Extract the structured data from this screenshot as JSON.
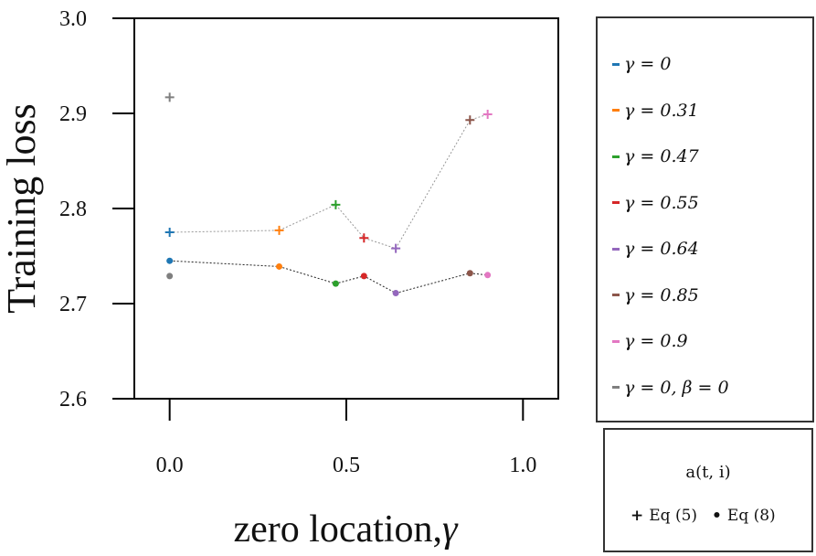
{
  "chart_data": {
    "type": "scatter",
    "ylabel": "Training loss",
    "xlabel": "zero location,",
    "xlabel_symbol": "γ",
    "xlim": [
      -0.1,
      1.1
    ],
    "ylim": [
      2.6,
      3.0
    ],
    "xticks": [
      0.0,
      0.5,
      1.0
    ],
    "xtick_labels": [
      "0.0",
      "0.5",
      "1.0"
    ],
    "yticks": [
      2.6,
      2.7,
      2.8,
      2.9,
      3.0
    ],
    "ytick_labels": [
      "2.6",
      "2.7",
      "2.8",
      "2.9",
      "3.0"
    ],
    "series": [
      {
        "name": "Eq (5)",
        "marker": "plus",
        "connected_x": [
          0.0,
          0.31,
          0.47,
          0.55,
          0.64,
          0.85,
          0.9
        ],
        "points": [
          {
            "x": 0.0,
            "y": 2.775,
            "color": "#1f77b4"
          },
          {
            "x": 0.31,
            "y": 2.777,
            "color": "#ff7f0e"
          },
          {
            "x": 0.47,
            "y": 2.804,
            "color": "#2ca02c"
          },
          {
            "x": 0.55,
            "y": 2.769,
            "color": "#d62728"
          },
          {
            "x": 0.64,
            "y": 2.758,
            "color": "#9467bd"
          },
          {
            "x": 0.85,
            "y": 2.893,
            "color": "#8c564b"
          },
          {
            "x": 0.9,
            "y": 2.899,
            "color": "#e377c2"
          },
          {
            "x": 0.0,
            "y": 2.917,
            "color": "#7f7f7f"
          }
        ]
      },
      {
        "name": "Eq (8)",
        "marker": "dot",
        "points": [
          {
            "x": 0.0,
            "y": 2.745,
            "color": "#1f77b4"
          },
          {
            "x": 0.31,
            "y": 2.739,
            "color": "#ff7f0e"
          },
          {
            "x": 0.47,
            "y": 2.721,
            "color": "#2ca02c"
          },
          {
            "x": 0.55,
            "y": 2.729,
            "color": "#d62728"
          },
          {
            "x": 0.64,
            "y": 2.711,
            "color": "#9467bd"
          },
          {
            "x": 0.85,
            "y": 2.732,
            "color": "#8c564b"
          },
          {
            "x": 0.9,
            "y": 2.73,
            "color": "#e377c2"
          },
          {
            "x": 0.0,
            "y": 2.729,
            "color": "#7f7f7f"
          }
        ]
      }
    ],
    "legend": [
      {
        "label": "γ = 0",
        "color": "#1f77b4"
      },
      {
        "label": "γ = 0.31",
        "color": "#ff7f0e"
      },
      {
        "label": "γ = 0.47",
        "color": "#2ca02c"
      },
      {
        "label": "γ = 0.55",
        "color": "#d62728"
      },
      {
        "label": "γ = 0.64",
        "color": "#9467bd"
      },
      {
        "label": "γ = 0.85",
        "color": "#8c564b"
      },
      {
        "label": "γ = 0.9",
        "color": "#e377c2"
      },
      {
        "label": "γ = 0, β = 0",
        "color": "#7f7f7f"
      }
    ],
    "marker_legend": {
      "title": "a(t, i)",
      "plus_label": "Eq (5)",
      "dot_label": "Eq (8)"
    }
  }
}
